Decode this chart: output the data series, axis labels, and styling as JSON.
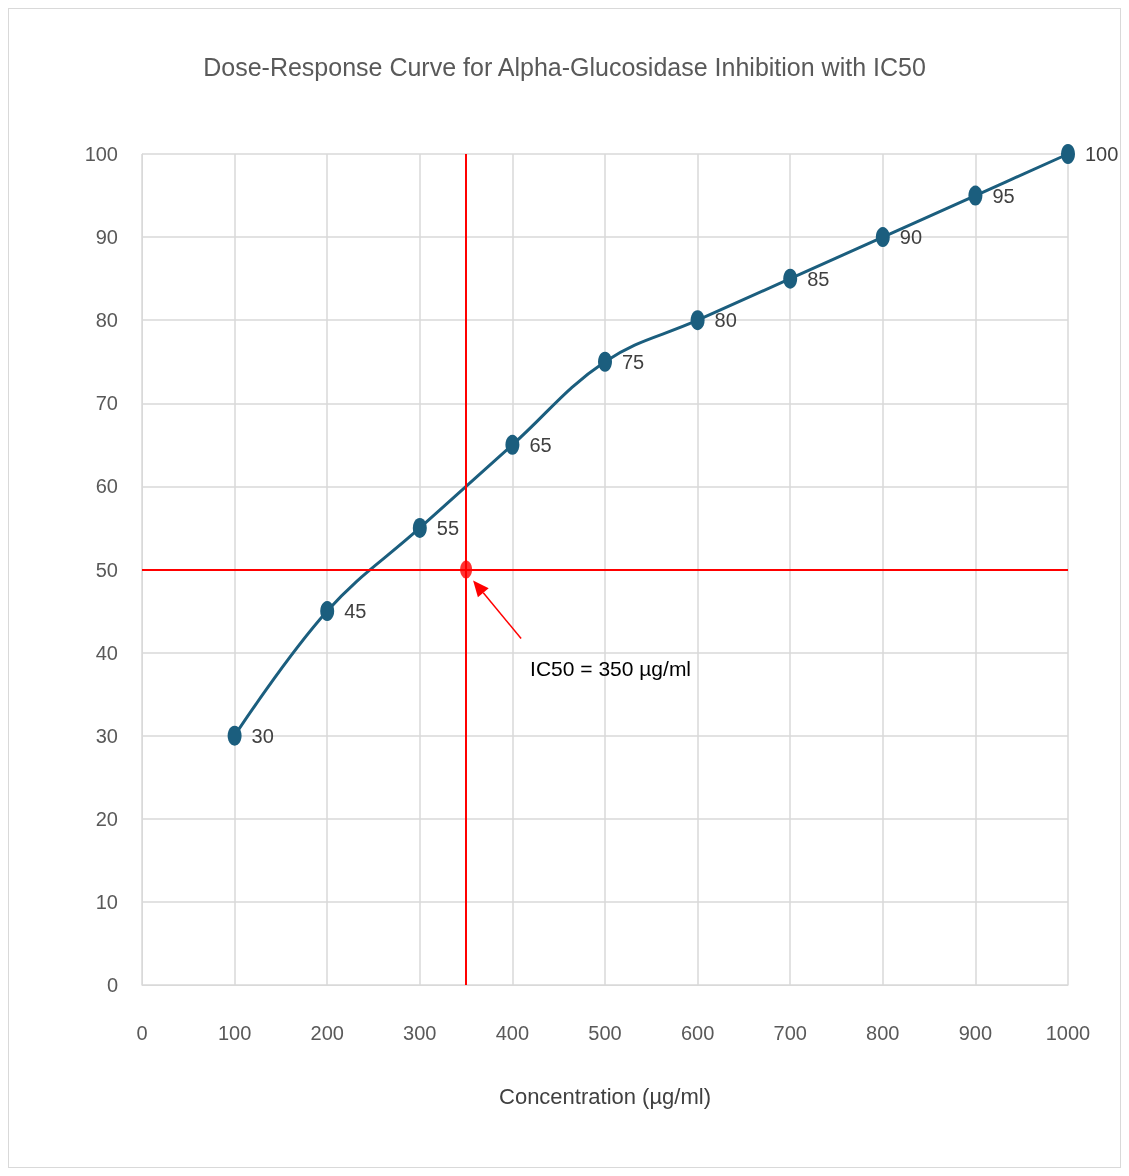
{
  "chart_data": {
    "type": "line",
    "title": "Dose-Response Curve for Alpha-Glucosidase Inhibition with IC50",
    "xlabel": "Concentration (µg/ml)",
    "x": [
      100,
      200,
      300,
      400,
      500,
      600,
      700,
      800,
      900,
      1000
    ],
    "series": [
      {
        "color": "#1b5e7e",
        "values": [
          30,
          45,
          55,
          65,
          75,
          80,
          85,
          90,
          95,
          100
        ],
        "value_labels": [
          "30",
          "45",
          "55",
          "65",
          "75",
          "80",
          "85",
          "90",
          "95",
          "100"
        ]
      },
      {
        "type": "scatter",
        "color": "#ff0000",
        "x": [
          350
        ],
        "values": [
          50
        ]
      }
    ],
    "xlim": [
      0,
      1000
    ],
    "xticks": [
      0,
      100,
      200,
      300,
      400,
      500,
      600,
      700,
      800,
      900,
      1000
    ],
    "ylim": [
      0,
      100
    ],
    "yticks": [
      0,
      10,
      20,
      30,
      40,
      50,
      60,
      70,
      80,
      90,
      100
    ],
    "ref_lines": [
      {
        "axis": "x",
        "value": 350,
        "color": "#ff0000"
      },
      {
        "axis": "y",
        "value": 50,
        "color": "#ff0000"
      }
    ],
    "annotations": [
      "IC50 = 350 µg/ml"
    ],
    "grid": true,
    "marker": "circle",
    "line_style": "solid"
  }
}
